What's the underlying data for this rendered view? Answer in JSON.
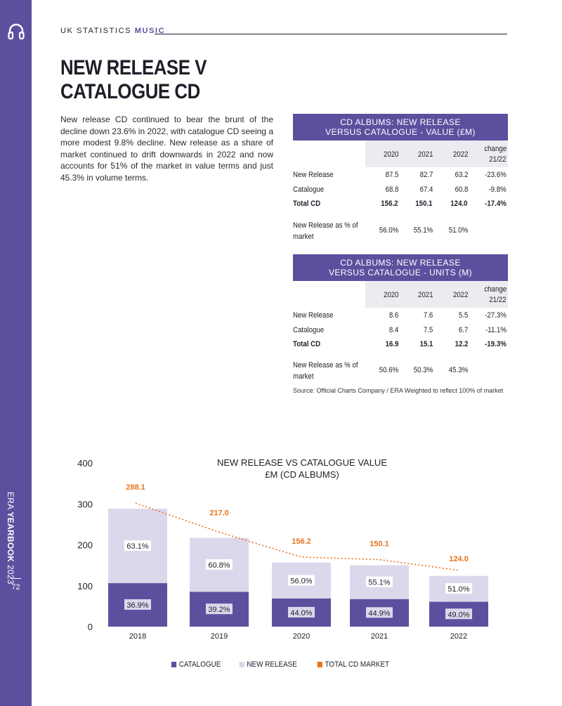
{
  "header": {
    "kicker": "UK STATISTICS",
    "kicker_accent": "MUSIC"
  },
  "sidebar": {
    "brand": "ERA",
    "brand_bold": "YEARBOOK",
    "year": "2023",
    "page": "72",
    "icon": "headphones-icon"
  },
  "title": {
    "line1": "NEW RELEASE V",
    "line2": "CATALOGUE CD"
  },
  "body": "New release CD continued to bear the brunt of the decline down 23.6% in 2022, with catalogue CD seeing a more modest 9.8% decline. New release as a share of market continued to drift downwards in 2022 and now accounts for 51% of the market in value terms and just 45.3% in volume terms.",
  "table_value": {
    "title1": "CD ALBUMS: NEW RELEASE",
    "title2": "VERSUS CATALOGUE - VALUE (£M)",
    "cols": [
      "2020",
      "2021",
      "2022"
    ],
    "change1": "change",
    "change2": "21/22",
    "rows": [
      {
        "label": "New Release",
        "values": [
          "87.5",
          "82.7",
          "63.2",
          "-23.6%"
        ],
        "bold": false
      },
      {
        "label": "Catalogue",
        "values": [
          "68.8",
          "67.4",
          "60.8",
          "-9.8%"
        ],
        "bold": false
      },
      {
        "label": "Total CD",
        "values": [
          "156.2",
          "150.1",
          "124.0",
          "-17.4%"
        ],
        "bold": true
      }
    ],
    "share_label1": "New Release as % of",
    "share_label2": "market",
    "share_values": [
      "56.0%",
      "55.1%",
      "51.0%"
    ]
  },
  "table_units": {
    "title1": "CD ALBUMS: NEW RELEASE",
    "title2": "VERSUS CATALOGUE - UNITS (M)",
    "cols": [
      "2020",
      "2021",
      "2022"
    ],
    "change1": "change",
    "change2": "21/22",
    "rows": [
      {
        "label": "New Release",
        "values": [
          "8.6",
          "7.6",
          "5.5",
          "-27.3%"
        ],
        "bold": false
      },
      {
        "label": "Catalogue",
        "values": [
          "8.4",
          "7.5",
          "6.7",
          "-11.1%"
        ],
        "bold": false
      },
      {
        "label": "Total CD",
        "values": [
          "16.9",
          "15.1",
          "12.2",
          "-19.3%"
        ],
        "bold": true
      }
    ],
    "share_label1": "New Release as % of",
    "share_label2": "market",
    "share_values": [
      "50.6%",
      "50.3%",
      "45.3%"
    ]
  },
  "source": "Source: Official Charts Company / ERA Weighted to reflect 100% of market",
  "colors": {
    "purple": "#5e4f9e",
    "lavender": "#dcd8ec",
    "orange": "#e8721c"
  },
  "chart_data": {
    "type": "bar",
    "title": "NEW RELEASE VS CATALOGUE VALUE",
    "subtitle": "£M (CD ALBUMS)",
    "categories": [
      "2018",
      "2019",
      "2020",
      "2021",
      "2022"
    ],
    "ylim": [
      0,
      400
    ],
    "yticks": [
      "0",
      "100",
      "200",
      "300",
      "400"
    ],
    "stacked": true,
    "series": [
      {
        "name": "CATALOGUE",
        "values": [
          106.3,
          85.1,
          68.7,
          67.4,
          60.8
        ],
        "labels": [
          "36.9%",
          "39.2%",
          "44.0%",
          "44.9%",
          "49.0%"
        ]
      },
      {
        "name": "NEW RELEASE",
        "values": [
          181.8,
          131.9,
          87.5,
          82.7,
          63.2
        ],
        "labels": [
          "63.1%",
          "60.8%",
          "56.0%",
          "55.1%",
          "51.0%"
        ]
      }
    ],
    "line": {
      "name": "TOTAL CD MARKET",
      "values": [
        288.1,
        217.0,
        156.2,
        150.1,
        124.0
      ],
      "labels": [
        "288.1",
        "217.0",
        "156.2",
        "150.1",
        "124.0"
      ]
    },
    "legend": "bottom"
  }
}
